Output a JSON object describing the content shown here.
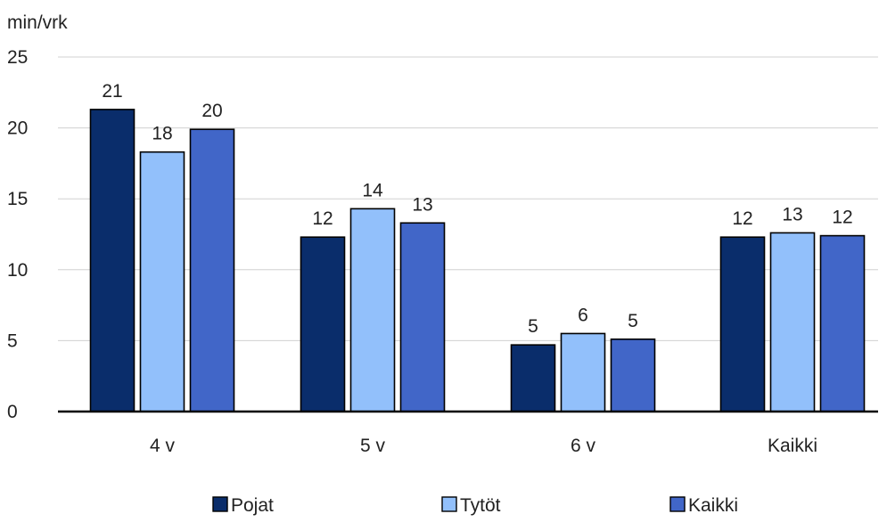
{
  "chart_data": {
    "type": "bar",
    "title": "",
    "unit_label": "min/vrk",
    "xlabel": "",
    "ylabel": "",
    "categories": [
      "4 v",
      "5 v",
      "6 v",
      "Kaikki"
    ],
    "series": [
      {
        "name": "Pojat",
        "color": "#0a2d6b",
        "values": [
          21.3,
          12.3,
          4.7,
          12.3
        ],
        "labels": [
          "21",
          "12",
          "5",
          "12"
        ]
      },
      {
        "name": "Tytöt",
        "color": "#92c0fb",
        "values": [
          18.3,
          14.3,
          5.5,
          12.6
        ],
        "labels": [
          "18",
          "14",
          "6",
          "13"
        ]
      },
      {
        "name": "Kaikki",
        "color": "#4166c8",
        "values": [
          19.9,
          13.3,
          5.1,
          12.4
        ],
        "labels": [
          "20",
          "13",
          "5",
          "12"
        ]
      }
    ],
    "ylim": [
      0,
      25
    ],
    "yticks": [
      0,
      5,
      10,
      15,
      20,
      25
    ],
    "grid": true,
    "legend_position": "bottom"
  }
}
